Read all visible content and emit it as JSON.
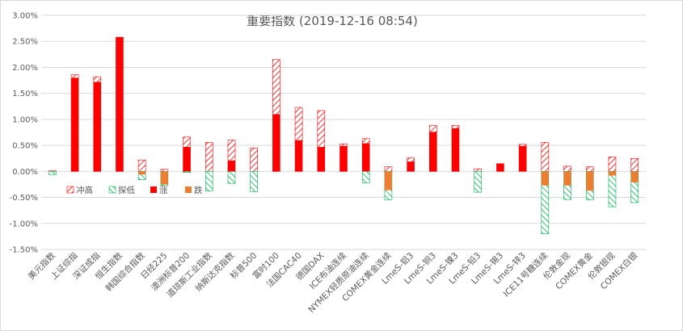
{
  "chart_data": {
    "type": "bar",
    "title": "重要指数 (2019-12-16 08:54)",
    "xlabel": "",
    "ylabel": "",
    "ylim": [
      -0.015,
      0.03
    ],
    "y_ticks": [
      0.03,
      0.025,
      0.02,
      0.015,
      0.01,
      0.005,
      0.0,
      -0.005,
      -0.01,
      -0.015
    ],
    "y_tick_labels": [
      "3.00%",
      "2.50%",
      "2.00%",
      "1.50%",
      "1.00%",
      "0.50%",
      "0.00%",
      "-0.50%",
      "-1.00%",
      "-1.50%"
    ],
    "grid": true,
    "legend_position": "left-middle",
    "categories": [
      "美元指数",
      "上证综指",
      "深证成指",
      "恒生指数",
      "韩国综合指数",
      "日经225",
      "澳洲标普200",
      "道琼斯工业指数",
      "纳斯达克指数",
      "标普500",
      "富时100",
      "法国CAC40",
      "德国DAX",
      "ICE布油连续",
      "NYMEX轻质原油连续",
      "COMEX黄金连续",
      "LmeS-铝3",
      "LmeS-铜3",
      "LmeS-镍3",
      "LmeS-铅3",
      "LmeS-锡3",
      "LmeS-锌3",
      "ICE11号糖连续",
      "伦敦金现",
      "COMEX黄金",
      "伦敦银现",
      "COMEX白银"
    ],
    "series": [
      {
        "name": "冲高",
        "pattern": "hatch",
        "color": "#ff0000",
        "values": [
          0.0001,
          0.0186,
          0.0182,
          0.0258,
          0.0022,
          0.0004,
          0.0066,
          0.0056,
          0.006,
          0.0045,
          0.0215,
          0.0123,
          0.0117,
          0.0053,
          0.0063,
          0.0009,
          0.0026,
          0.0088,
          0.0088,
          0.0005,
          0.0015,
          0.0052,
          0.0056,
          0.001,
          0.0009,
          0.0028,
          0.0025
        ]
      },
      {
        "name": "探低",
        "pattern": "hatch",
        "color": "#00b050",
        "values": [
          -0.0006,
          0.0,
          0.0,
          0.0,
          -0.0016,
          -0.0027,
          -0.0002,
          -0.0038,
          -0.0023,
          -0.0039,
          0.0,
          0.0,
          0.0,
          0.0,
          -0.0022,
          -0.0055,
          0.0,
          0.0,
          0.0,
          -0.004,
          0.0,
          0.0,
          -0.012,
          -0.0054,
          -0.0055,
          -0.0068,
          -0.006
        ]
      },
      {
        "name": "涨",
        "pattern": "solid",
        "color": "#ff0000",
        "values": [
          0.0,
          0.018,
          0.0172,
          0.0258,
          0.0,
          0.0,
          0.0047,
          0.0,
          0.0021,
          0.0,
          0.011,
          0.006,
          0.0047,
          0.0049,
          0.0054,
          0.0,
          0.0019,
          0.0076,
          0.0083,
          0.0,
          0.0015,
          0.0049,
          0.0,
          0.0,
          0.0,
          0.0,
          0.0
        ]
      },
      {
        "name": "跌",
        "pattern": "solid",
        "color": "#ed7d31",
        "values": [
          0.0,
          0.0,
          0.0,
          0.0,
          -0.0006,
          -0.0025,
          0.0,
          0.0,
          0.0,
          0.0,
          0.0,
          0.0,
          0.0,
          0.0,
          0.0,
          -0.0036,
          0.0,
          0.0,
          0.0,
          0.0,
          0.0,
          0.0,
          -0.0027,
          -0.0027,
          -0.0037,
          -0.0008,
          -0.0021
        ]
      }
    ]
  }
}
